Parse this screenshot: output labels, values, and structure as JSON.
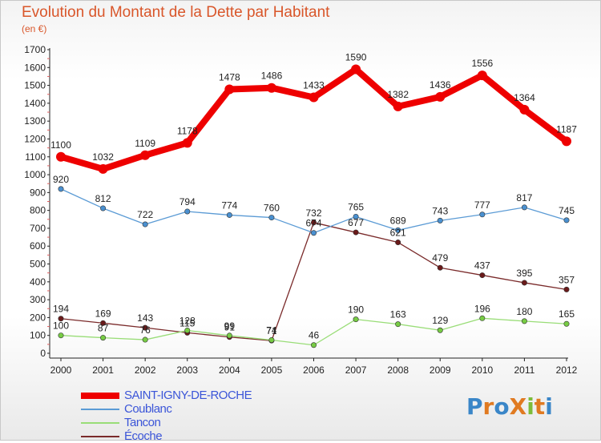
{
  "title": "Evolution du Montant de la Dette par Habitant",
  "subtitle": "(en €)",
  "logo": {
    "text": "ProXiti",
    "letters": [
      {
        "ch": "P",
        "color": "#3a86c8"
      },
      {
        "ch": "r",
        "color": "#e07a21"
      },
      {
        "ch": "o",
        "color": "#3a86c8"
      },
      {
        "ch": "X",
        "color": "#e07a21"
      },
      {
        "ch": "i",
        "color": "#7cbc3a"
      },
      {
        "ch": "t",
        "color": "#e07a21"
      },
      {
        "ch": "i",
        "color": "#3a86c8"
      }
    ]
  },
  "chart_data": {
    "type": "line",
    "x": [
      "2000",
      "2001",
      "2002",
      "2003",
      "2004",
      "2005",
      "2006",
      "2007",
      "2008",
      "2009",
      "2010",
      "2011",
      "2012"
    ],
    "ylim": [
      0,
      1700
    ],
    "yticks": [
      0,
      100,
      200,
      300,
      400,
      500,
      600,
      700,
      800,
      900,
      1000,
      1100,
      1200,
      1300,
      1400,
      1500,
      1600,
      1700
    ],
    "grid": false,
    "legend_placement": "bottom-left",
    "series": [
      {
        "name": "SAINT-IGNY-DE-ROCHE",
        "color": "#ee0000",
        "point_color": "#ee0000",
        "width": "thick",
        "values": [
          1100,
          1032,
          1109,
          1178,
          1478,
          1486,
          1433,
          1590,
          1382,
          1436,
          1556,
          1364,
          1187
        ],
        "labels": [
          "1100",
          "1032",
          "1109",
          "1178",
          "1478",
          "1486",
          "1433",
          "1590",
          "1382",
          "1436",
          "1556",
          "1364",
          "1187"
        ]
      },
      {
        "name": "Coublanc",
        "color": "#5b9bd5",
        "point_color": "#4a90d0",
        "width": "thin",
        "values": [
          920,
          812,
          722,
          794,
          774,
          760,
          674,
          765,
          689,
          743,
          777,
          817,
          745
        ],
        "labels": [
          "920",
          "812",
          "722",
          "794",
          "774",
          "760",
          "674",
          "765",
          "689",
          "743",
          "777",
          "817",
          "745"
        ]
      },
      {
        "name": "Tancon",
        "color": "#99dd77",
        "point_color": "#77cc44",
        "width": "thin",
        "values": [
          100,
          87,
          76,
          128,
          99,
          74,
          46,
          190,
          163,
          129,
          196,
          180,
          165
        ],
        "labels": [
          "100",
          "87",
          "76",
          "128",
          "99",
          "74",
          "46",
          "190",
          "163",
          "129",
          "196",
          "180",
          "165"
        ]
      },
      {
        "name": "Écoche",
        "color": "#7a2a2a",
        "point_color": "#6a1a1a",
        "width": "thin",
        "values": [
          194,
          169,
          143,
          115,
          91,
          71,
          732,
          677,
          621,
          479,
          437,
          395,
          357
        ],
        "labels": [
          "194",
          "169",
          "143",
          "115",
          "91",
          "71",
          "732",
          "677",
          "621",
          "479",
          "437",
          "395",
          "357"
        ]
      }
    ]
  }
}
